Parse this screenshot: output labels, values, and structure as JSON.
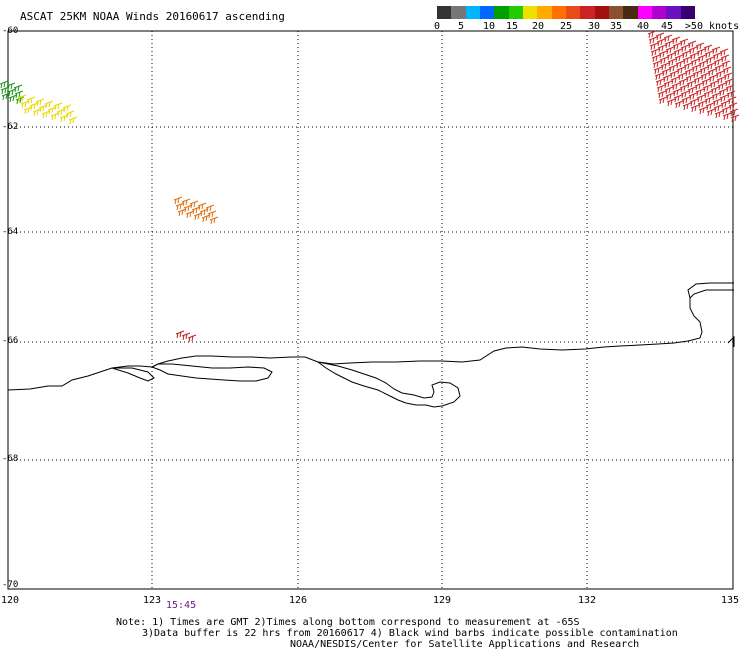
{
  "title": "ASCAT 25KM NOAA Winds 20160617 ascending",
  "legend": {
    "colors": [
      "#333333",
      "#777777",
      "#00b4ff",
      "#0066ff",
      "#00a000",
      "#22cc00",
      "#f0e000",
      "#ffaa00",
      "#ff7000",
      "#e84a1a",
      "#cc2222",
      "#a01010",
      "#8a5030",
      "#4a2a10",
      "#ff00ff",
      "#b000d0",
      "#6a10c0",
      "#3a0070"
    ],
    "labels": [
      "0",
      "5",
      "10",
      "15",
      "20",
      "25",
      "30",
      "35",
      "40",
      "45",
      ">50 knots"
    ]
  },
  "axes": {
    "lat_labels": [
      "-60",
      "-62",
      "-64",
      "-66",
      "-68",
      "-70"
    ],
    "lon_labels": [
      "120",
      "123",
      "126",
      "129",
      "132",
      "135"
    ]
  },
  "pass_time": "15:45",
  "notes": {
    "line1": "Note: 1) Times are GMT 2)Times along bottom correspond to measurement at -65S",
    "line2": "3)Data buffer is 22 hrs from 20160617 4) Black wind barbs indicate possible contamination",
    "line3": "NOAA/NESDIS/Center for Satellite Applications and Research"
  }
}
